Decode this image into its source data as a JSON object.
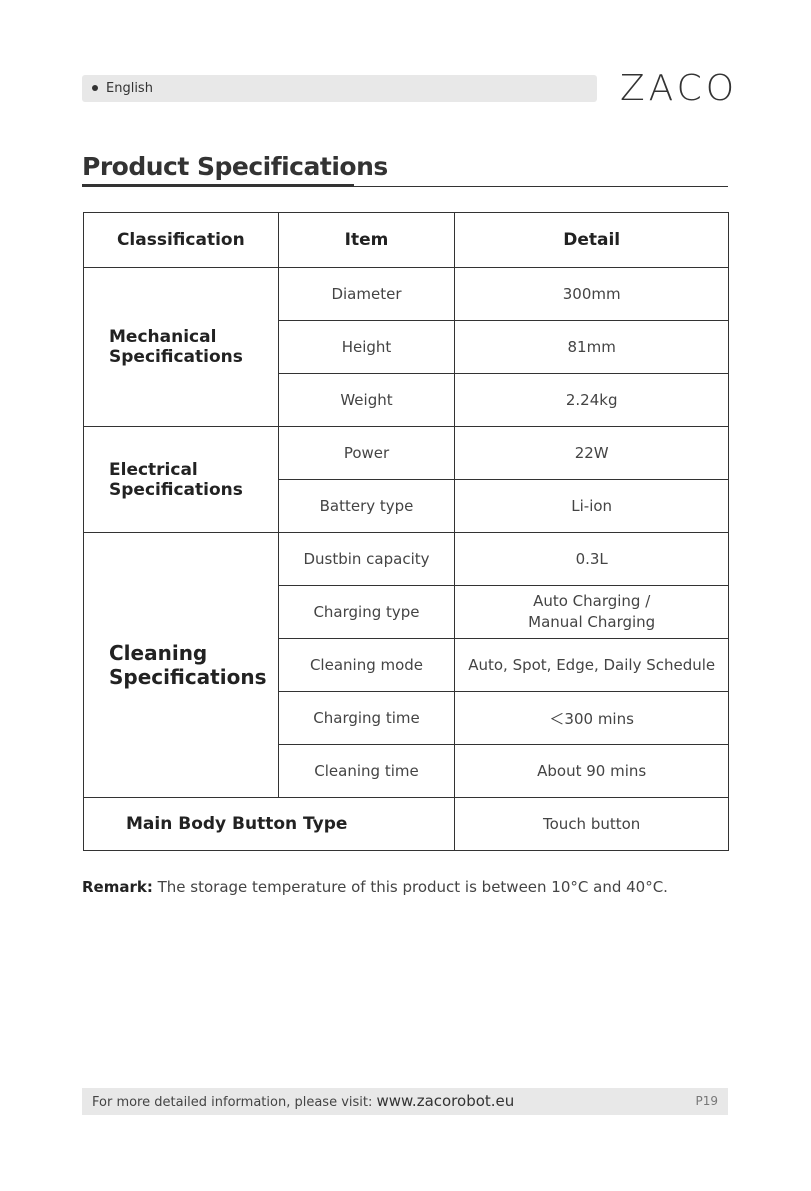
{
  "header": {
    "language": "English",
    "logo": "ZACO"
  },
  "title": "Product Specifications",
  "table": {
    "headers": [
      "Classification",
      "Item",
      "Detail"
    ],
    "groups": [
      {
        "classification": "Mechanical Specifications",
        "rows": [
          [
            "Diameter",
            "300mm"
          ],
          [
            "Height",
            "81mm"
          ],
          [
            "Weight",
            "2.24kg"
          ]
        ]
      },
      {
        "classification": "Electrical Specifications",
        "rows": [
          [
            "Power",
            "22W"
          ],
          [
            "Battery type",
            "Li-ion"
          ]
        ]
      },
      {
        "classification": "Cleaning Specifications",
        "rows": [
          [
            "Dustbin capacity",
            "0.3L"
          ],
          [
            "Charging type",
            "Auto Charging / Manual Charging"
          ],
          [
            "Cleaning mode",
            "Auto, Spot, Edge, Daily Schedule"
          ],
          [
            "Charging time",
            "＜300 mins"
          ],
          [
            "Cleaning time",
            "About 90 mins"
          ]
        ]
      }
    ],
    "main_body": {
      "label": "Main Body Button Type",
      "value": "Touch button"
    }
  },
  "remark": {
    "label": "Remark:",
    "text": " The storage temperature of this product is between 10°C and 40°C."
  },
  "footer": {
    "text": "For more detailed information, please visit: ",
    "url": "www.zacorobot.eu",
    "page": "P19"
  }
}
